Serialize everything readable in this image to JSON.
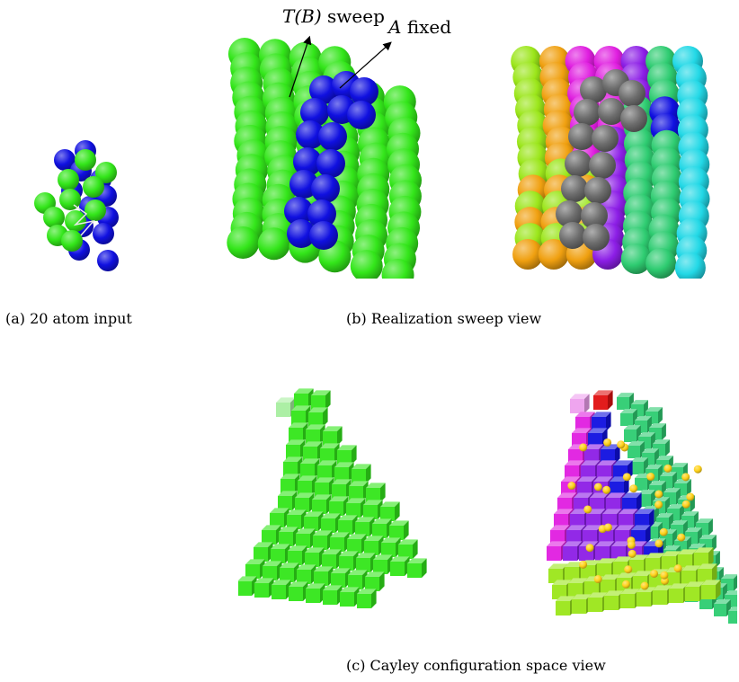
{
  "captions": {
    "a": "(a) 20 atom input",
    "b": "(b) Realization sweep view",
    "c": "(c) Cayley configuration space view"
  },
  "annotations": {
    "sweep_math": "T(B)",
    "sweep_word": "sweep",
    "fixed_math": "A",
    "fixed_word": "fixed"
  },
  "colors": {
    "green": "#33e61a",
    "blue": "#1010e0",
    "gray": "#6e6e6e",
    "magenta": "#e01ee0",
    "purple": "#8c1ee6",
    "yellow_green": "#9be61a",
    "teal_green": "#2ecc71",
    "orange": "#f0a010",
    "gold": "#ffd21a",
    "red": "#e01010",
    "cyan": "#22d8e6"
  }
}
